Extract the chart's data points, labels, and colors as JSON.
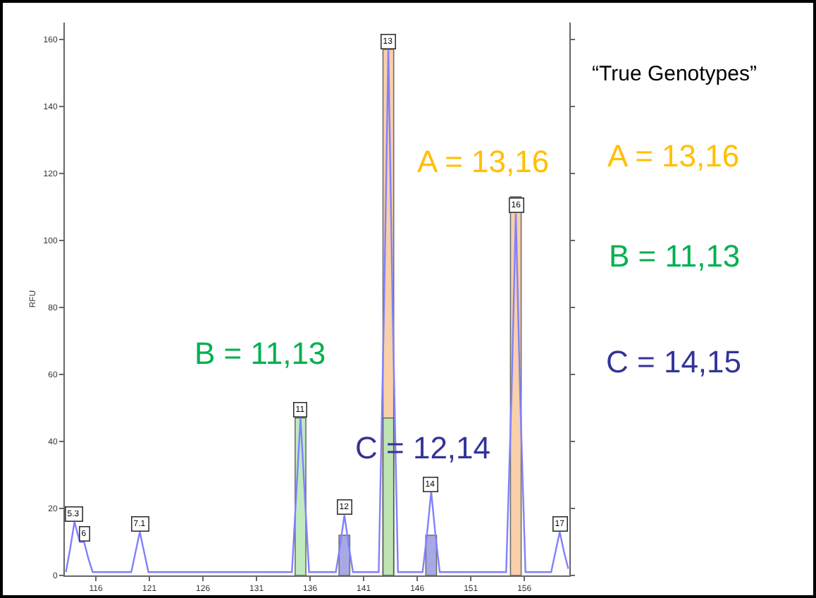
{
  "chart_data": {
    "type": "line",
    "ylabel": "RFU",
    "xlim": [
      113.1,
      160.2
    ],
    "ylim": [
      0,
      165
    ],
    "xticks": [
      116,
      121,
      126,
      131,
      136,
      141,
      146,
      151,
      156
    ],
    "yticks": [
      0,
      20,
      40,
      60,
      80,
      100,
      120,
      140,
      160
    ],
    "grid": false,
    "marker": "none",
    "line_style": "solid",
    "series": [
      {
        "color": "#8080ff",
        "x": [
          113.2,
          113.6,
          114.0,
          114.5,
          114.9,
          115.3,
          115.7,
          119.3,
          119.7,
          120.1,
          120.5,
          120.9,
          134.3,
          134.7,
          135.1,
          135.5,
          135.9,
          138.4,
          138.8,
          139.2,
          139.6,
          140.0,
          142.4,
          142.9,
          143.3,
          143.7,
          144.2,
          146.5,
          146.9,
          147.3,
          147.7,
          148.1,
          154.3,
          154.8,
          155.2,
          155.6,
          156.1,
          158.5,
          158.9,
          159.3,
          159.7,
          160.1
        ],
        "values": [
          1,
          8,
          16,
          10,
          10,
          5,
          1,
          1,
          7,
          13,
          7,
          1,
          1,
          24,
          47,
          24,
          1,
          1,
          9,
          18,
          9,
          1,
          1,
          80,
          157,
          80,
          1,
          1,
          12,
          25,
          12,
          1,
          1,
          54,
          108,
          54,
          1,
          1,
          7,
          13,
          7,
          2
        ]
      },
      {
        "type": "bar",
        "color": "#f9c89b",
        "x": [
          143.3,
          155.2
        ],
        "values": [
          157,
          113
        ]
      },
      {
        "type": "bar",
        "color": "#b5e8b5",
        "x": [
          135.1,
          143.3
        ],
        "values": [
          47,
          47
        ]
      },
      {
        "type": "bar",
        "color": "#9a9ae0",
        "x": [
          139.2,
          147.3
        ],
        "values": [
          12,
          12
        ]
      }
    ],
    "annotations": [
      "“True Genotypes”",
      "A = 13,16",
      "B = 11,13",
      "C = 14,15",
      "A = 13,16",
      "B = 11,13",
      "C = 12,14",
      {
        "text": "5.3",
        "x": 114.0,
        "y": 16
      },
      {
        "text": "6",
        "x": 114.9,
        "y": 10
      },
      {
        "text": "7.1",
        "x": 120.1,
        "y": 13
      },
      {
        "text": "11",
        "x": 135.1,
        "y": 47
      },
      {
        "text": "12",
        "x": 139.2,
        "y": 18
      },
      {
        "text": "13",
        "x": 143.3,
        "y": 157
      },
      {
        "text": "14",
        "x": 147.3,
        "y": 25
      },
      {
        "text": "16",
        "x": 155.2,
        "y": 108
      },
      {
        "text": "17",
        "x": 159.3,
        "y": 13
      }
    ]
  }
}
